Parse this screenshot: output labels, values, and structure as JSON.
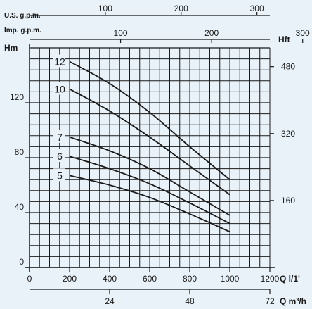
{
  "chart_data": {
    "type": "line",
    "title": "",
    "x_axis_primary": {
      "label": "Q l/1'",
      "min": 0,
      "max": 1200,
      "ticks": [
        0,
        200,
        400,
        600,
        800,
        1000,
        1200
      ],
      "tick_labels": [
        "0",
        "200",
        "400",
        "600",
        "800",
        "1000",
        "1200"
      ]
    },
    "x_axis_m3h": {
      "label": "Q m³/h",
      "ticks": [
        24,
        48,
        72
      ],
      "tick_labels": [
        "24",
        "48",
        "72"
      ]
    },
    "x_axis_us_gpm": {
      "label": "U.S. g.p.m.",
      "ticks": [
        100,
        200,
        300
      ],
      "tick_labels": [
        "100",
        "200",
        "300"
      ]
    },
    "x_axis_imp_gpm": {
      "label": "Imp. g.p.m.",
      "ticks": [
        100,
        200,
        300
      ],
      "tick_labels": [
        "100",
        "200",
        "300"
      ]
    },
    "y_axis_left": {
      "label": "Hm",
      "min": 0,
      "max": 160,
      "ticks": [
        0,
        40,
        80,
        120
      ],
      "tick_labels": [
        "0",
        "40",
        "80",
        "120"
      ]
    },
    "y_axis_right": {
      "label": "Hft",
      "ticks": [
        160,
        320,
        480
      ],
      "tick_labels": [
        "160",
        "320",
        "480"
      ]
    },
    "grid": true,
    "series": [
      {
        "name": "12",
        "x": [
          200,
          400,
          600,
          800,
          1000
        ],
        "y": [
          150,
          134,
          113,
          88,
          64
        ]
      },
      {
        "name": "10",
        "x": [
          200,
          400,
          600,
          800,
          1000
        ],
        "y": [
          130,
          114,
          95,
          74,
          53
        ]
      },
      {
        "name": "7",
        "x": [
          200,
          400,
          600,
          800,
          1000
        ],
        "y": [
          95,
          85,
          72,
          55,
          38
        ]
      },
      {
        "name": "6",
        "x": [
          200,
          400,
          600,
          800,
          1000
        ],
        "y": [
          81,
          72,
          61,
          47,
          32
        ]
      },
      {
        "name": "5",
        "x": [
          200,
          400,
          600,
          800,
          1000
        ],
        "y": [
          67,
          60,
          51,
          39,
          26
        ]
      }
    ],
    "line_color": "#1a1a1a",
    "grid_color": "#1a1a1a",
    "background_color": "#e9f2f9"
  }
}
